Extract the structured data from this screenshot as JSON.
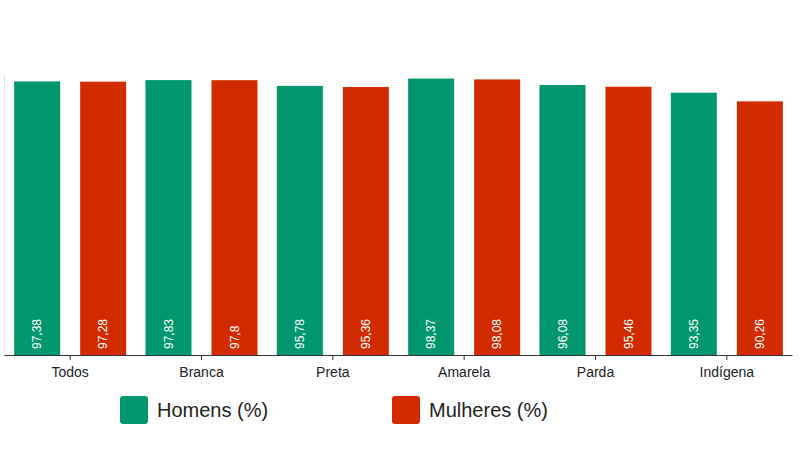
{
  "chart_data": {
    "type": "bar",
    "categories": [
      "Todos",
      "Branca",
      "Preta",
      "Amarela",
      "Parda",
      "Indígena"
    ],
    "series": [
      {
        "name": "Homens (%)",
        "color": "#00966e",
        "values": [
          97.38,
          97.83,
          95.78,
          98.37,
          96.08,
          93.35
        ],
        "value_labels": [
          "97,38",
          "97,83",
          "95,78",
          "98,37",
          "96,08",
          "93,35"
        ]
      },
      {
        "name": "Mulheres (%)",
        "color": "#d22b00",
        "values": [
          97.28,
          97.8,
          95.36,
          98.08,
          95.46,
          90.26
        ],
        "value_labels": [
          "97,28",
          "97,8",
          "95,36",
          "98,08",
          "95,46",
          "90,26"
        ]
      }
    ],
    "ylim": [
      0,
      100
    ],
    "grid": false,
    "legend": "bottom",
    "data_labels": true,
    "tick_labels": "x"
  }
}
